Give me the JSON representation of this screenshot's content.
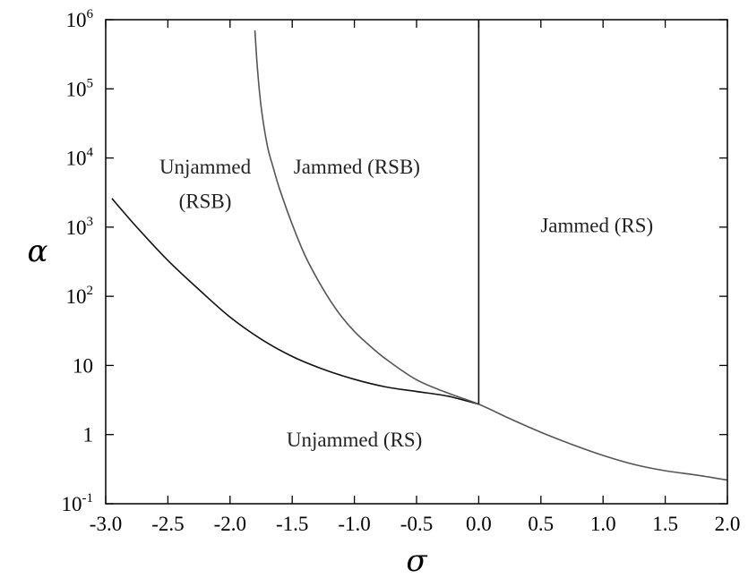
{
  "chart_data": {
    "type": "line",
    "title": "",
    "xlabel": "σ",
    "ylabel": "α",
    "xlim": [
      -3.0,
      2.0
    ],
    "ylim": [
      0.1,
      1000000
    ],
    "y_scale": "log",
    "grid": false,
    "x_ticks": [
      "-3.0",
      "-2.5",
      "-2.0",
      "-1.5",
      "-1.0",
      "-0.5",
      "0.0",
      "0.5",
      "1.0",
      "1.5",
      "2.0"
    ],
    "y_ticks": [
      {
        "base": "10",
        "exp": "-1",
        "value": 0.1
      },
      {
        "base": "1",
        "exp": "",
        "value": 1
      },
      {
        "base": "10",
        "exp": "",
        "value": 10
      },
      {
        "base": "10",
        "exp": "2",
        "value": 100
      },
      {
        "base": "10",
        "exp": "3",
        "value": 1000
      },
      {
        "base": "10",
        "exp": "4",
        "value": 10000
      },
      {
        "base": "10",
        "exp": "5",
        "value": 100000
      },
      {
        "base": "10",
        "exp": "6",
        "value": 1000000
      }
    ],
    "series": [
      {
        "color": "#111111",
        "x": [
          -2.95,
          -2.75,
          -2.5,
          -2.25,
          -2.0,
          -1.75,
          -1.5,
          -1.25,
          -1.0,
          -0.75,
          -0.5,
          -0.25,
          0.0
        ],
        "y": [
          2600,
          1000,
          330,
          125,
          50,
          24,
          13.5,
          8.8,
          6.3,
          4.9,
          4.2,
          3.6,
          2.75
        ]
      },
      {
        "color": "#555555",
        "x": [
          -1.8,
          -1.78,
          -1.75,
          -1.7,
          -1.65,
          -1.6,
          -1.5,
          -1.4,
          -1.3,
          -1.2,
          -1.1,
          -1.0,
          -0.9,
          -0.75,
          -0.5,
          -0.25,
          0.0,
          0.25,
          0.5,
          0.75,
          1.0,
          1.25,
          1.5,
          1.75,
          2.0
        ],
        "y": [
          700000,
          200000,
          55000,
          15000,
          7000,
          3500,
          1100,
          400,
          180,
          90,
          50,
          31,
          21,
          12.5,
          6.2,
          4.0,
          2.75,
          1.7,
          1.08,
          0.72,
          0.5,
          0.37,
          0.3,
          0.26,
          0.22
        ]
      },
      {
        "color": "#111111",
        "x": [
          0.0,
          0.0
        ],
        "y": [
          2.75,
          1000000
        ]
      }
    ],
    "annotations": [
      {
        "text": "Unjammed",
        "x": -2.2,
        "y": 7500
      },
      {
        "text": "(RSB)",
        "x": -2.2,
        "y": 2400
      },
      {
        "text": "Jammed (RSB)",
        "x": -0.98,
        "y": 7500
      },
      {
        "text": "Jammed (RS)",
        "x": 0.95,
        "y": 1080
      },
      {
        "text": "Unjammed (RS)",
        "x": -1.0,
        "y": 0.85
      }
    ]
  }
}
